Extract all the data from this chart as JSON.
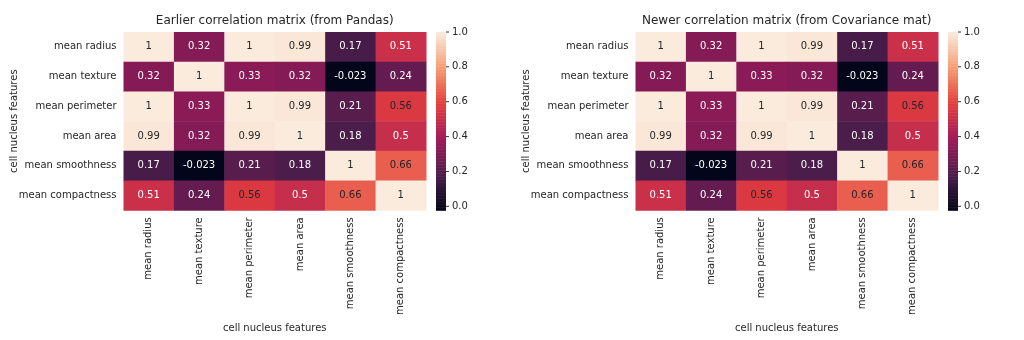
{
  "chart_data": [
    {
      "type": "heatmap",
      "title": "Earlier correlation matrix (from Pandas)",
      "xlabel": "cell nucleus features",
      "ylabel": "cell nucleus features",
      "categories": [
        "mean radius",
        "mean texture",
        "mean perimeter",
        "mean area",
        "mean smoothness",
        "mean compactness"
      ],
      "y_categories": [
        "mean radius",
        "mean texture",
        "mean perimeter",
        "mean area",
        "mean smoothness",
        "mean compactness"
      ],
      "cells": [
        [
          1,
          0.32,
          1,
          0.99,
          0.17,
          0.51
        ],
        [
          0.32,
          1,
          0.33,
          0.32,
          -0.023,
          0.24
        ],
        [
          1,
          0.33,
          1,
          0.99,
          0.21,
          0.56
        ],
        [
          0.99,
          0.32,
          0.99,
          1,
          0.18,
          0.5
        ],
        [
          0.17,
          -0.023,
          0.21,
          0.18,
          1,
          0.66
        ],
        [
          0.51,
          0.24,
          0.56,
          0.5,
          0.66,
          1
        ]
      ],
      "data_labels": true,
      "clim": [
        -0.023,
        1
      ],
      "cticks": [
        {
          "value": 0,
          "label": "0.0"
        },
        {
          "value": 0.2,
          "label": "0.2"
        },
        {
          "value": 0.4,
          "label": "0.4"
        },
        {
          "value": 0.6,
          "label": "0.6"
        },
        {
          "value": 0.8,
          "label": "0.8"
        },
        {
          "value": 1,
          "label": "1.0"
        }
      ]
    },
    {
      "type": "heatmap",
      "title": "Newer correlation matrix (from Covariance mat)",
      "xlabel": "cell nucleus features",
      "ylabel": "cell nucleus features",
      "categories": [
        "mean radius",
        "mean texture",
        "mean perimeter",
        "mean area",
        "mean smoothness",
        "mean compactness"
      ],
      "y_categories": [
        "mean radius",
        "mean texture",
        "mean perimeter",
        "mean area",
        "mean smoothness",
        "mean compactness"
      ],
      "cells": [
        [
          1,
          0.32,
          1,
          0.99,
          0.17,
          0.51
        ],
        [
          0.32,
          1,
          0.33,
          0.32,
          -0.023,
          0.24
        ],
        [
          1,
          0.33,
          1,
          0.99,
          0.21,
          0.56
        ],
        [
          0.99,
          0.32,
          0.99,
          1,
          0.18,
          0.5
        ],
        [
          0.17,
          -0.023,
          0.21,
          0.18,
          1,
          0.66
        ],
        [
          0.51,
          0.24,
          0.56,
          0.5,
          0.66,
          1
        ]
      ],
      "data_labels": true,
      "clim": [
        -0.023,
        1
      ],
      "cticks": [
        {
          "value": 0,
          "label": "0.0"
        },
        {
          "value": 0.2,
          "label": "0.2"
        },
        {
          "value": 0.4,
          "label": "0.4"
        },
        {
          "value": 0.6,
          "label": "0.6"
        },
        {
          "value": 0.8,
          "label": "0.8"
        },
        {
          "value": 1,
          "label": "1.0"
        }
      ]
    }
  ]
}
